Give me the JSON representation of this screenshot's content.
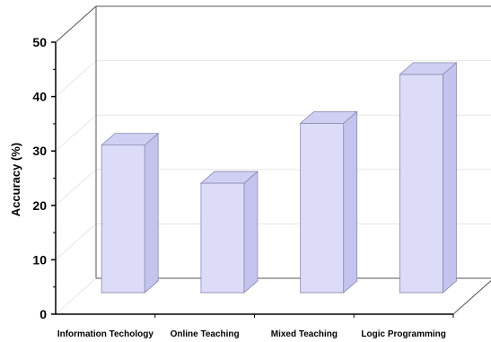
{
  "chart_data": {
    "type": "bar",
    "categories": [
      "Information Techology",
      "Online Teaching",
      "Mixed Teaching",
      "Logic Programming"
    ],
    "values": [
      29.5,
      22.5,
      33.5,
      42.5
    ],
    "ylabel": "Accuracy (%)",
    "ylim": [
      0,
      50
    ],
    "yticks": [
      "0",
      "10",
      "20",
      "30",
      "40",
      "50"
    ],
    "grid": true,
    "three_d": true,
    "bar_color": "#dcdcf8",
    "bar_top_color": "#cfcff4",
    "bar_side_color": "#c3c3ee",
    "bar_stroke": "#8a8ab0"
  }
}
